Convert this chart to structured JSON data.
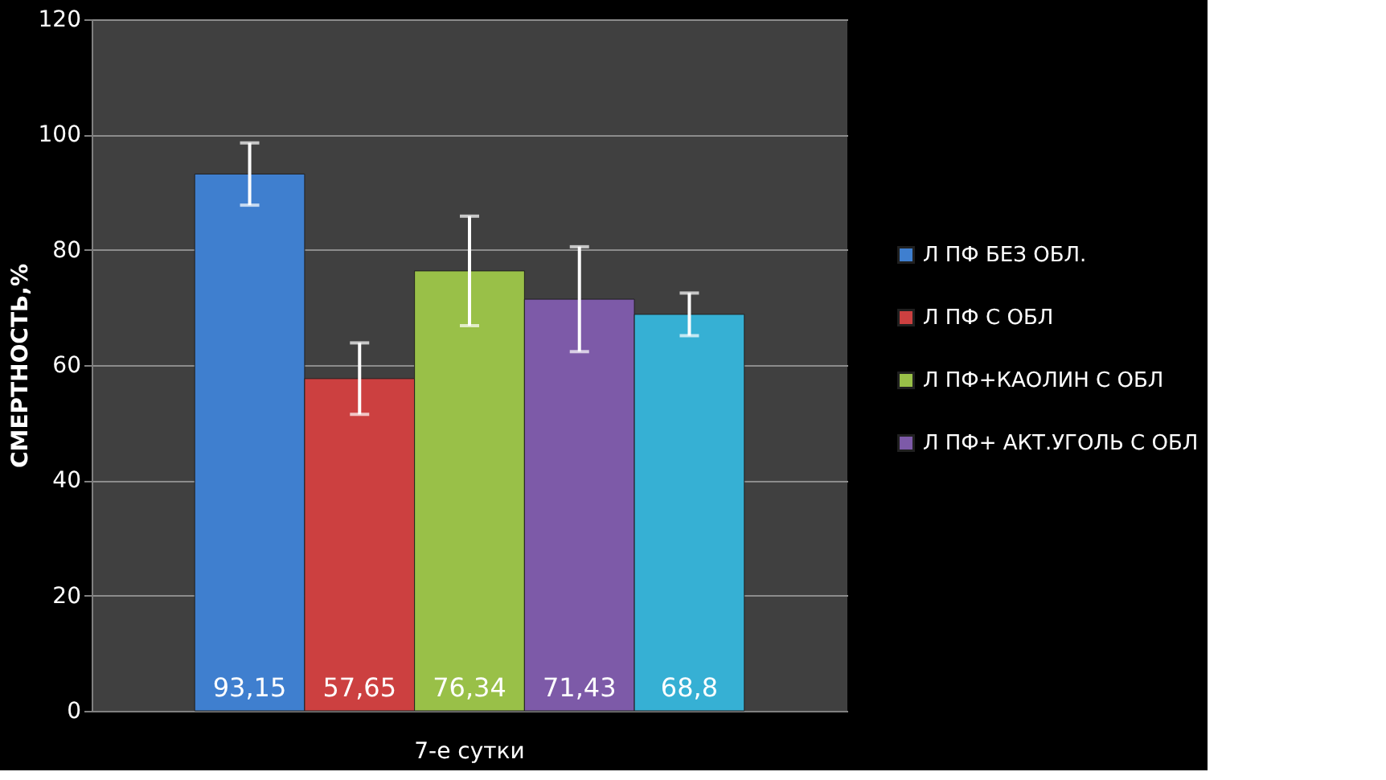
{
  "chart_data": {
    "type": "bar",
    "categories": [
      "7-е сутки"
    ],
    "ylabel": "СМЕРТНОСТЬ,%",
    "ylim": [
      0,
      120
    ],
    "yticks": [
      0,
      20,
      40,
      60,
      80,
      100,
      120
    ],
    "grid": "y",
    "legend": "right",
    "series": [
      {
        "name": "Л ПФ БЕЗ ОБЛ.",
        "color": "#3f7fcf",
        "values": [
          93.15
        ],
        "errors": [
          5.4
        ],
        "value_labels": [
          "93,15"
        ]
      },
      {
        "name": "Л ПФ С ОБЛ",
        "color": "#cc4040",
        "values": [
          57.65
        ],
        "errors": [
          6.2
        ],
        "value_labels": [
          "57,65"
        ]
      },
      {
        "name": "Л ПФ+КАОЛИН С ОБЛ",
        "color": "#99c048",
        "values": [
          76.34
        ],
        "errors": [
          9.5
        ],
        "value_labels": [
          "76,34"
        ]
      },
      {
        "name": "Л ПФ+ АКТ.УГОЛЬ С ОБЛ",
        "color": "#7d5aa8",
        "values": [
          71.43
        ],
        "errors": [
          9.1
        ],
        "value_labels": [
          "71,43"
        ]
      },
      {
        "color": "#36b0d4",
        "values": [
          68.8
        ],
        "errors": [
          3.7
        ],
        "value_labels": [
          "68,8"
        ]
      }
    ]
  }
}
